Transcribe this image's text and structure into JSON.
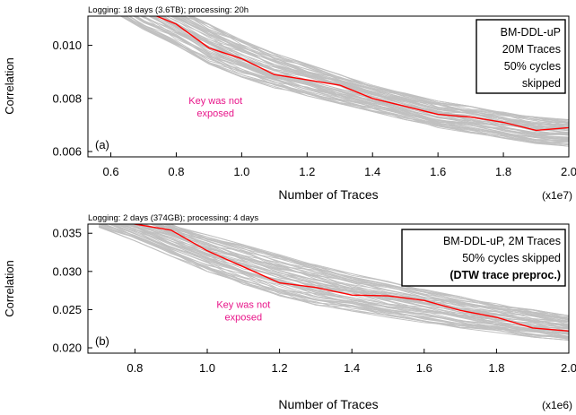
{
  "chart_data": [
    {
      "type": "line",
      "caption": "Logging: 18 days (3.6TB); processing: 20h",
      "panel_label": "(a)",
      "xlabel": "Number of Traces",
      "ylabel": "Correlation",
      "x_multiplier": "(x1e7)",
      "xlim": [
        0.53,
        2.0
      ],
      "ylim": [
        0.0058,
        0.0111
      ],
      "x_ticks": [
        0.6,
        0.8,
        1.0,
        1.2,
        1.4,
        1.6,
        1.8,
        2.0
      ],
      "x_tick_labels": [
        "0.6",
        "0.8",
        "1.0",
        "1.2",
        "1.4",
        "1.6",
        "1.8",
        "2.0"
      ],
      "y_ticks": [
        0.006,
        0.008,
        0.01
      ],
      "y_tick_labels": [
        "0.006",
        "0.008",
        "0.010"
      ],
      "legend_lines": [
        "BM-DDL-uP",
        "20M Traces",
        "50% cycles",
        "skipped"
      ],
      "legend_bold_line": "",
      "annotation_lines": [
        "Key was not",
        "exposed"
      ],
      "annotation_color": "#e8168a",
      "annotation_pos": [
        0.92,
        0.0078
      ],
      "wrong_key_color": "#c0c0c0",
      "correct_key_color": "#ff0000",
      "correct_key": {
        "x": [
          0.5,
          0.6,
          0.7,
          0.8,
          0.9,
          1.0,
          1.1,
          1.2,
          1.3,
          1.4,
          1.5,
          1.6,
          1.7,
          1.8,
          1.9,
          2.0
        ],
        "y": [
          0.0124,
          0.0118,
          0.0113,
          0.0108,
          0.0099,
          0.0095,
          0.0089,
          0.0087,
          0.0085,
          0.008,
          0.0077,
          0.0074,
          0.0073,
          0.0071,
          0.0068,
          0.0069
        ]
      },
      "wrong_key_band": {
        "x": [
          0.5,
          0.6,
          0.7,
          0.8,
          0.9,
          1.0,
          1.1,
          1.2,
          1.3,
          1.4,
          1.5,
          1.6,
          1.7,
          1.8,
          1.9,
          2.0
        ],
        "y_low": [
          0.0122,
          0.0113,
          0.0106,
          0.01,
          0.0093,
          0.0088,
          0.0084,
          0.0081,
          0.0078,
          0.0075,
          0.0072,
          0.0069,
          0.0067,
          0.0065,
          0.0063,
          0.0062
        ],
        "y_high": [
          0.0135,
          0.0127,
          0.0121,
          0.0114,
          0.0108,
          0.0102,
          0.0097,
          0.0093,
          0.0089,
          0.0085,
          0.0082,
          0.0079,
          0.0077,
          0.0075,
          0.0073,
          0.0072
        ]
      }
    },
    {
      "type": "line",
      "caption": "Logging: 2 days (374GB); processing: 4 days",
      "panel_label": "(b)",
      "xlabel": "Number of Traces",
      "ylabel": "Correlation",
      "x_multiplier": "(x1e6)",
      "xlim": [
        0.67,
        2.0
      ],
      "ylim": [
        0.0193,
        0.0362
      ],
      "x_ticks": [
        0.8,
        1.0,
        1.2,
        1.4,
        1.6,
        1.8,
        2.0
      ],
      "x_tick_labels": [
        "0.8",
        "1.0",
        "1.2",
        "1.4",
        "1.6",
        "1.8",
        "2.0"
      ],
      "y_ticks": [
        0.02,
        0.025,
        0.03,
        0.035
      ],
      "y_tick_labels": [
        "0.020",
        "0.025",
        "0.030",
        "0.035"
      ],
      "legend_lines": [
        "BM-DDL-uP, 2M Traces",
        "50% cycles skipped"
      ],
      "legend_bold_line": "(DTW trace preproc.)",
      "annotation_lines": [
        "Key was not",
        "exposed"
      ],
      "annotation_color": "#e8168a",
      "annotation_pos": [
        1.1,
        0.0252
      ],
      "wrong_key_color": "#c0c0c0",
      "correct_key_color": "#ff0000",
      "correct_key": {
        "x": [
          0.7,
          0.8,
          0.9,
          1.0,
          1.1,
          1.2,
          1.3,
          1.4,
          1.5,
          1.6,
          1.7,
          1.8,
          1.9,
          2.0
        ],
        "y": [
          0.037,
          0.0362,
          0.0354,
          0.0327,
          0.0306,
          0.0285,
          0.0279,
          0.0269,
          0.0268,
          0.0262,
          0.0249,
          0.024,
          0.0226,
          0.0222
        ],
        "note": ""
      },
      "wrong_key_band": {
        "x": [
          0.7,
          0.8,
          0.9,
          1.0,
          1.1,
          1.2,
          1.3,
          1.4,
          1.5,
          1.6,
          1.7,
          1.8,
          1.9,
          2.0
        ],
        "y_low": [
          0.0358,
          0.034,
          0.032,
          0.03,
          0.0283,
          0.0268,
          0.0256,
          0.0248,
          0.024,
          0.0233,
          0.0226,
          0.022,
          0.0214,
          0.021
        ],
        "y_high": [
          0.0395,
          0.0378,
          0.0362,
          0.0348,
          0.0335,
          0.0322,
          0.0309,
          0.0297,
          0.0287,
          0.0277,
          0.0267,
          0.0258,
          0.025,
          0.0242
        ]
      }
    }
  ]
}
